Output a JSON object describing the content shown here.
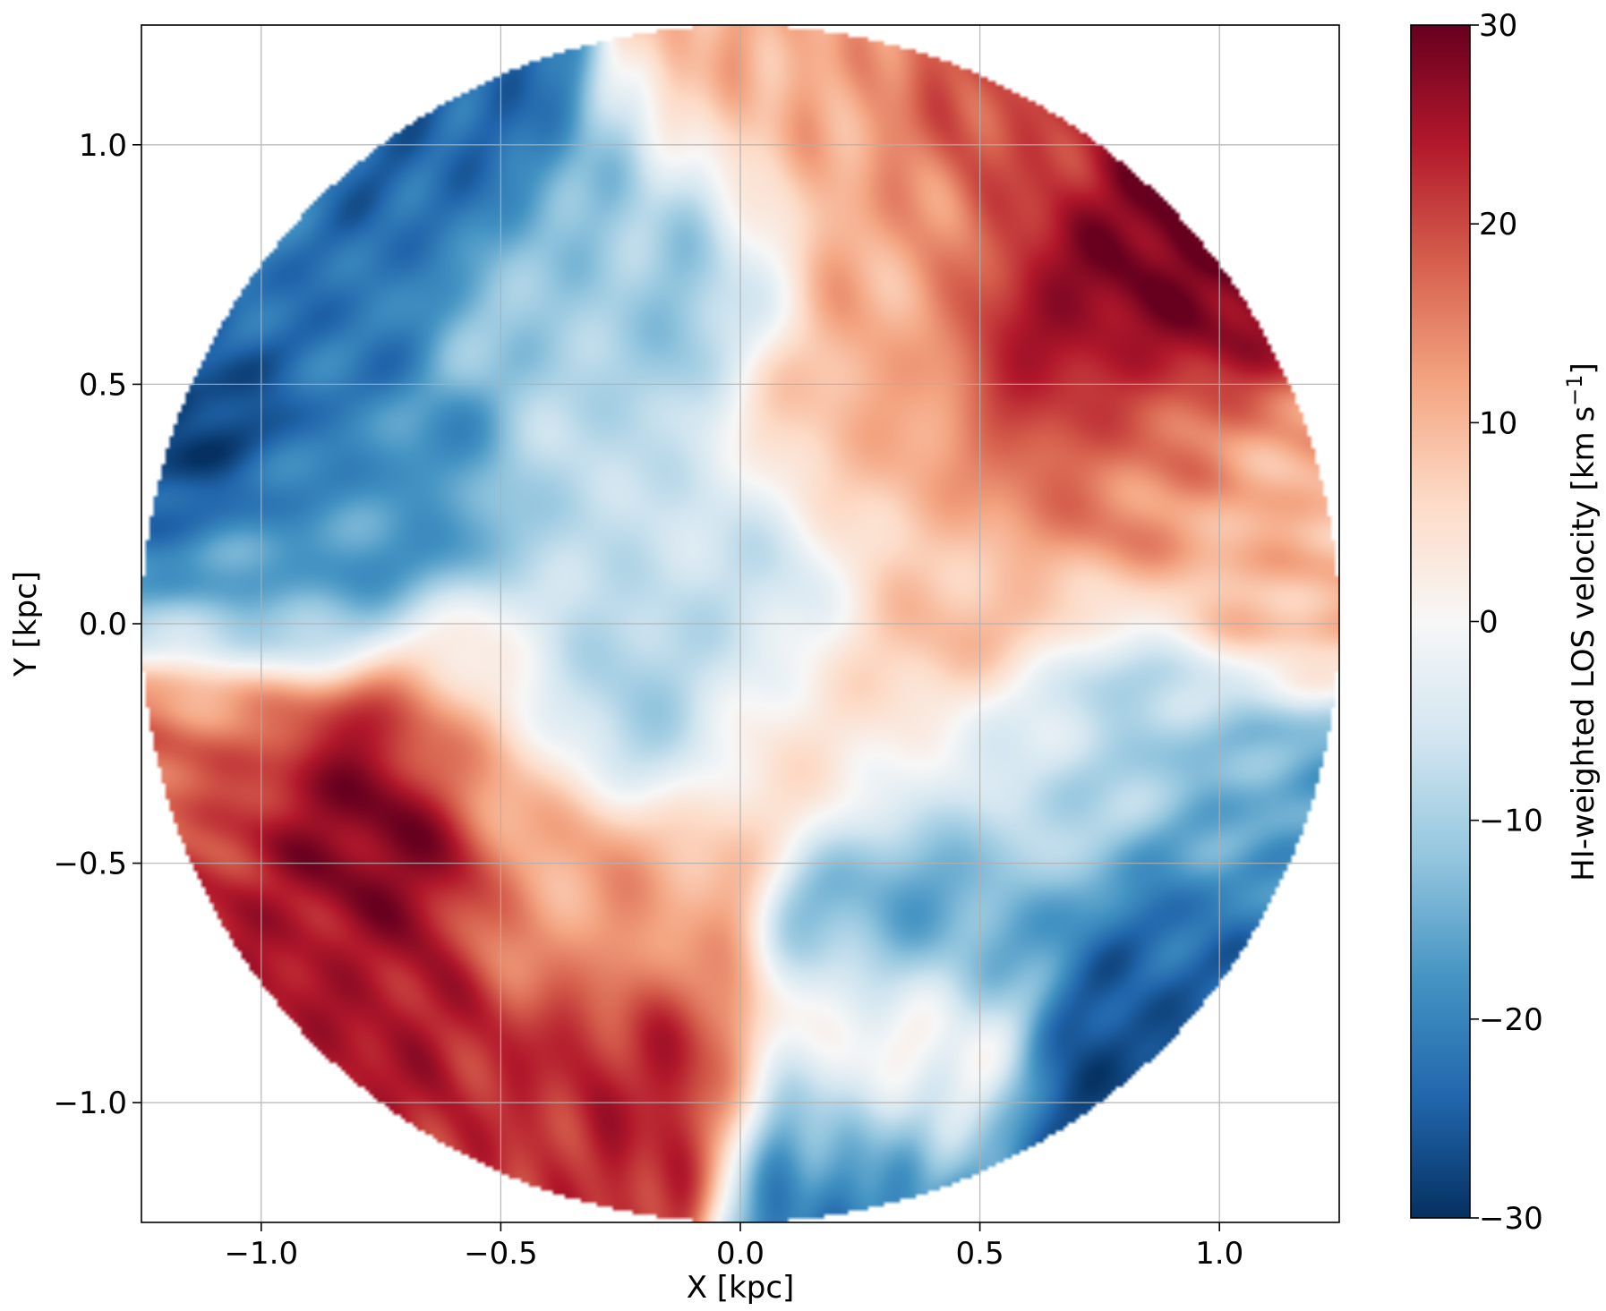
{
  "chart_data": {
    "type": "heatmap",
    "title": "",
    "xlabel": "X [kpc]",
    "ylabel": "Y [kpc]",
    "xlim": [
      -1.25,
      1.25
    ],
    "ylim": [
      -1.25,
      1.25
    ],
    "x_ticks": [
      -1.0,
      -0.5,
      0.0,
      0.5,
      1.0
    ],
    "x_tick_labels": [
      "−1.0",
      "−0.5",
      "0.0",
      "0.5",
      "1.0"
    ],
    "y_ticks": [
      1.0,
      0.5,
      0.0,
      -0.5,
      -1.0
    ],
    "y_tick_labels": [
      "1.0",
      "0.5",
      "0.0",
      "−0.5",
      "−1.0"
    ],
    "grid": true,
    "map_region": {
      "shape": "circle",
      "center": [
        0.0,
        0.0
      ],
      "radius_kpc": 1.25
    },
    "colormap": "RdBu_r",
    "colorbar": {
      "label_main": "HI-weighted LOS velocity [km s",
      "label_exp": "−1",
      "label_end": "]",
      "range": [
        -30,
        30
      ],
      "ticks": [
        30,
        20,
        10,
        0,
        -10,
        -20,
        -30
      ],
      "tick_labels": [
        "30",
        "20",
        "10",
        "0",
        "−10",
        "−20",
        "−30"
      ],
      "colors": [
        "#053061",
        "#2166ac",
        "#4393c3",
        "#92c5de",
        "#d1e5f0",
        "#f7f7f7",
        "#fddbc7",
        "#f4a582",
        "#d6604d",
        "#b2182b",
        "#67001f"
      ]
    },
    "velocity_features": [
      {
        "x": 0.85,
        "y": 0.75,
        "value": 30
      },
      {
        "x": 0.68,
        "y": 0.54,
        "value": 26
      },
      {
        "x": 0.55,
        "y": 1.0,
        "value": 20
      },
      {
        "x": 0.8,
        "y": 0.35,
        "value": 14
      },
      {
        "x": 0.3,
        "y": 0.8,
        "value": 11
      },
      {
        "x": 0.3,
        "y": 0.4,
        "value": 10
      },
      {
        "x": 0.05,
        "y": 1.05,
        "value": 11
      },
      {
        "x": 1.1,
        "y": 0.1,
        "value": 10
      },
      {
        "x": 0.45,
        "y": 0.0,
        "value": 9
      },
      {
        "x": -0.78,
        "y": -0.4,
        "value": 30
      },
      {
        "x": -0.92,
        "y": -0.68,
        "value": 24
      },
      {
        "x": -0.7,
        "y": -0.98,
        "value": 25
      },
      {
        "x": -0.3,
        "y": -0.97,
        "value": 24
      },
      {
        "x": -0.5,
        "y": -1.1,
        "value": 20
      },
      {
        "x": -1.1,
        "y": -0.28,
        "value": 18
      },
      {
        "x": -0.3,
        "y": -0.6,
        "value": 12
      },
      {
        "x": -0.5,
        "y": -0.2,
        "value": 10
      },
      {
        "x": 0.35,
        "y": -0.92,
        "value": 12
      },
      {
        "x": 0.15,
        "y": -0.2,
        "value": 5
      },
      {
        "x": -1.15,
        "y": 0.38,
        "value": -30
      },
      {
        "x": -0.95,
        "y": 0.65,
        "value": -22
      },
      {
        "x": -0.6,
        "y": 0.98,
        "value": -24
      },
      {
        "x": -0.75,
        "y": 0.25,
        "value": -18
      },
      {
        "x": -1.05,
        "y": 0.1,
        "value": -15
      },
      {
        "x": -0.35,
        "y": 0.7,
        "value": -10
      },
      {
        "x": -0.15,
        "y": 0.8,
        "value": -12
      },
      {
        "x": -0.2,
        "y": 0.2,
        "value": -6
      },
      {
        "x": 0.0,
        "y": 0.0,
        "value": -10
      },
      {
        "x": -0.3,
        "y": -0.1,
        "value": -14
      },
      {
        "x": 0.8,
        "y": -1.02,
        "value": -30
      },
      {
        "x": 0.9,
        "y": -0.7,
        "value": -24
      },
      {
        "x": 0.4,
        "y": -0.65,
        "value": -18
      },
      {
        "x": 0.3,
        "y": -1.1,
        "value": -24
      },
      {
        "x": 1.1,
        "y": -0.4,
        "value": -16
      },
      {
        "x": 0.85,
        "y": -0.25,
        "value": -10
      },
      {
        "x": 0.6,
        "y": -0.35,
        "value": -6
      }
    ]
  }
}
